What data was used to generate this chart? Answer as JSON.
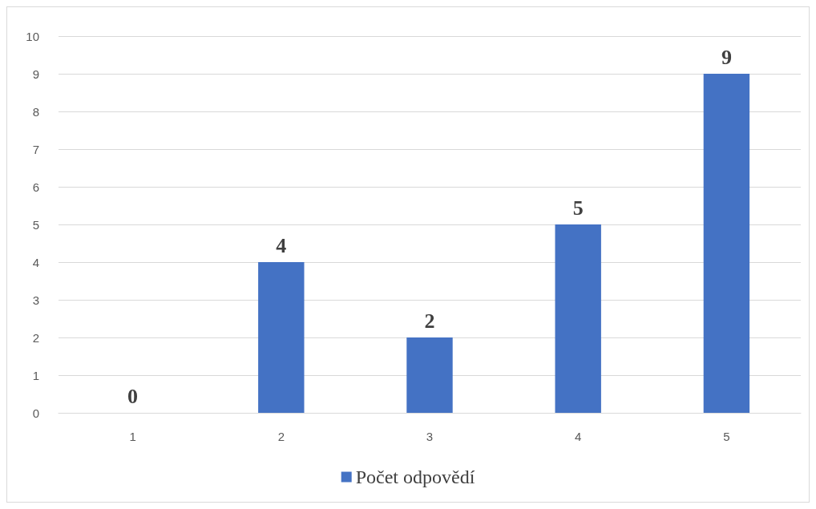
{
  "chart_data": {
    "type": "bar",
    "categories": [
      "1",
      "2",
      "3",
      "4",
      "5"
    ],
    "series": [
      {
        "name": "Počet odpovědí",
        "color": "#4472c4",
        "values": [
          0,
          4,
          2,
          5,
          9
        ]
      }
    ],
    "ylim": [
      0,
      10
    ],
    "yticks": [
      0,
      1,
      2,
      3,
      4,
      5,
      6,
      7,
      8,
      9,
      10
    ],
    "grid": "y",
    "legend": "bottom",
    "data_labels": true
  }
}
